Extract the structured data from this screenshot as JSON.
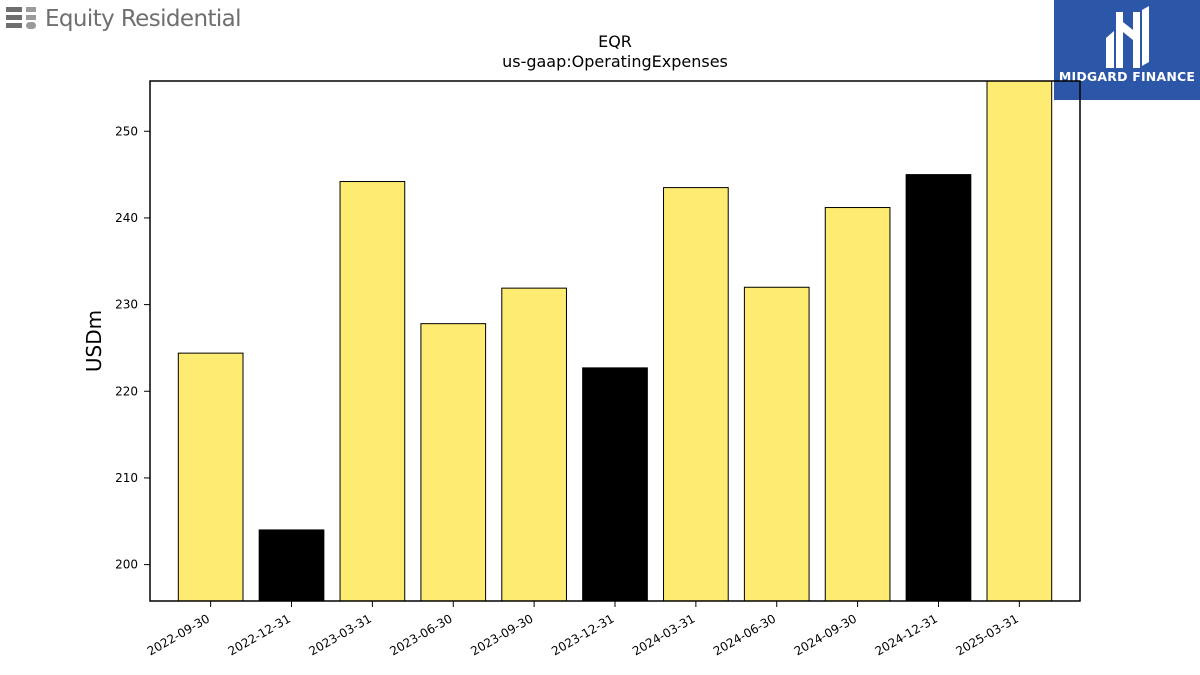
{
  "branding": {
    "company_name": "Equity Residential",
    "company_logo_icon": "stacked-bars-logo-icon",
    "partner_name": "MIDGARD FINANCE",
    "partner_logo_icon": "midgard-m-logo-icon",
    "partner_color": "#2c56a8",
    "company_logo_color": "#6f6f6f"
  },
  "chart_data": {
    "type": "bar",
    "title": "EQR",
    "subtitle": "us-gaap:OperatingExpenses",
    "ylabel": "USDm",
    "xlabel": "",
    "categories": [
      "2022-09-30",
      "2022-12-31",
      "2023-03-31",
      "2023-06-30",
      "2023-09-30",
      "2023-12-31",
      "2024-03-31",
      "2024-06-30",
      "2024-09-30",
      "2024-12-31",
      "2025-03-31"
    ],
    "values": [
      224.4,
      204.0,
      244.2,
      227.8,
      231.9,
      222.7,
      243.5,
      232.0,
      241.2,
      245.0,
      255.8
    ],
    "bar_colors": [
      "#fdeb72",
      "#000000",
      "#fdeb72",
      "#fdeb72",
      "#fdeb72",
      "#000000",
      "#fdeb72",
      "#fdeb72",
      "#fdeb72",
      "#000000",
      "#fdeb72"
    ],
    "ylim": [
      195.8,
      255.8
    ],
    "yticks": [
      200,
      210,
      220,
      230,
      240,
      250
    ],
    "grid": false,
    "legend": "none"
  }
}
